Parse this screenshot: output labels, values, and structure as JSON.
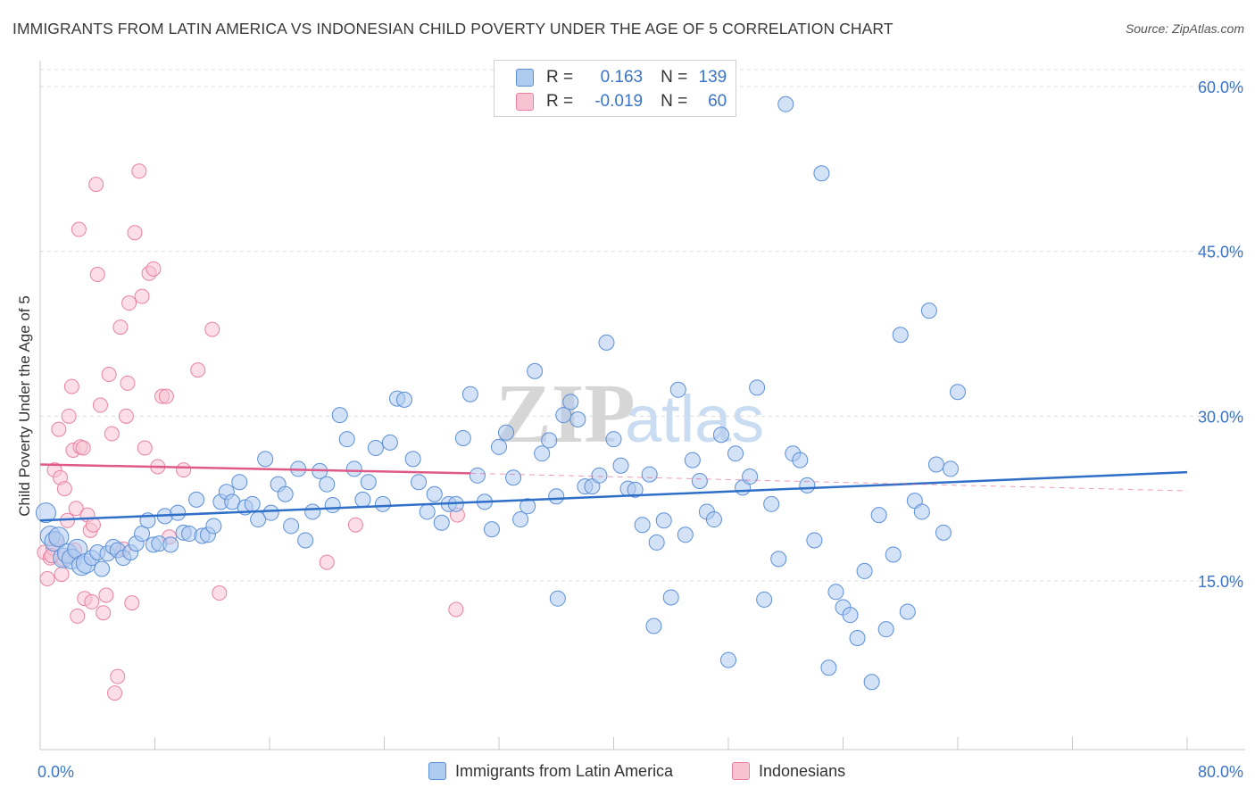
{
  "title": "IMMIGRANTS FROM LATIN AMERICA VS INDONESIAN CHILD POVERTY UNDER THE AGE OF 5 CORRELATION CHART",
  "source": "Source: ZipAtlas.com",
  "watermark": {
    "zip": "ZIP",
    "atlas": "atlas"
  },
  "colors": {
    "blue_fill": "#aecbf0",
    "blue_stroke": "#5b8fd6",
    "blue_line": "#2f6fc8",
    "pink_fill": "#f7c3d3",
    "pink_stroke": "#e8829f",
    "pink_line": "#e05a88",
    "axis_text": "#3a74c9",
    "grid": "#dcdcdc"
  },
  "legend": {
    "rows": [
      {
        "r_label": "R =",
        "r_value": "0.163",
        "n_label": "N =",
        "n_value": "139"
      },
      {
        "r_label": "R =",
        "r_value": "-0.019",
        "n_label": "N =",
        "n_value": "60"
      }
    ]
  },
  "bottom_legend": {
    "blue": "Immigrants from Latin America",
    "pink": "Indonesians"
  },
  "chart_data": {
    "type": "scatter",
    "title": "IMMIGRANTS FROM LATIN AMERICA VS INDONESIAN CHILD POVERTY UNDER THE AGE OF 5 CORRELATION CHART",
    "xlabel": "",
    "ylabel": "Child Poverty Under the Age of 5",
    "xlim": [
      0,
      80
    ],
    "ylim": [
      0,
      63
    ],
    "x_tick_labels": [
      "0.0%",
      "80.0%"
    ],
    "y_ticks": [
      15,
      30,
      45,
      60
    ],
    "y_tick_labels": [
      "15.0%",
      "30.0%",
      "45.0%",
      "60.0%"
    ],
    "grid": true,
    "series": [
      {
        "name": "Immigrants from Latin America",
        "color": "blue",
        "trend": {
          "x": [
            0,
            80
          ],
          "y": [
            20.5,
            24.9
          ]
        },
        "points": [
          [
            0.4,
            21.2
          ],
          [
            0.7,
            19.1
          ],
          [
            1.0,
            18.6
          ],
          [
            1.3,
            19.0
          ],
          [
            1.6,
            17.1
          ],
          [
            1.9,
            17.5
          ],
          [
            2.2,
            17.0
          ],
          [
            2.6,
            17.9
          ],
          [
            2.9,
            16.4
          ],
          [
            3.2,
            16.6
          ],
          [
            3.6,
            17.1
          ],
          [
            4.0,
            17.6
          ],
          [
            4.3,
            16.1
          ],
          [
            4.7,
            17.5
          ],
          [
            5.1,
            18.1
          ],
          [
            5.4,
            17.8
          ],
          [
            5.8,
            17.1
          ],
          [
            6.3,
            17.6
          ],
          [
            6.7,
            18.4
          ],
          [
            7.1,
            19.3
          ],
          [
            7.5,
            20.5
          ],
          [
            7.9,
            18.3
          ],
          [
            8.3,
            18.4
          ],
          [
            8.7,
            20.9
          ],
          [
            9.1,
            18.3
          ],
          [
            9.6,
            21.2
          ],
          [
            10.0,
            19.4
          ],
          [
            10.4,
            19.3
          ],
          [
            10.9,
            22.4
          ],
          [
            11.3,
            19.1
          ],
          [
            11.7,
            19.2
          ],
          [
            12.1,
            20.0
          ],
          [
            12.6,
            22.2
          ],
          [
            13.0,
            23.1
          ],
          [
            13.4,
            22.2
          ],
          [
            13.9,
            24.0
          ],
          [
            14.3,
            21.7
          ],
          [
            14.8,
            22.0
          ],
          [
            15.2,
            20.6
          ],
          [
            15.7,
            26.1
          ],
          [
            16.1,
            21.2
          ],
          [
            16.6,
            23.8
          ],
          [
            17.1,
            22.9
          ],
          [
            17.5,
            20.0
          ],
          [
            18.0,
            25.2
          ],
          [
            18.5,
            18.7
          ],
          [
            19.0,
            21.3
          ],
          [
            19.5,
            25.0
          ],
          [
            20.0,
            23.8
          ],
          [
            20.4,
            21.9
          ],
          [
            20.9,
            30.1
          ],
          [
            21.4,
            27.9
          ],
          [
            21.9,
            25.2
          ],
          [
            22.5,
            22.4
          ],
          [
            22.9,
            24.0
          ],
          [
            23.4,
            27.1
          ],
          [
            23.9,
            22.0
          ],
          [
            24.4,
            27.6
          ],
          [
            24.9,
            31.6
          ],
          [
            25.4,
            31.5
          ],
          [
            26.0,
            26.1
          ],
          [
            26.4,
            24.0
          ],
          [
            27.0,
            21.3
          ],
          [
            27.5,
            22.9
          ],
          [
            28.0,
            20.3
          ],
          [
            28.5,
            22.0
          ],
          [
            29.0,
            22.0
          ],
          [
            29.5,
            28.0
          ],
          [
            30.0,
            32.0
          ],
          [
            30.5,
            24.6
          ],
          [
            31.0,
            22.2
          ],
          [
            31.5,
            19.7
          ],
          [
            32.0,
            27.2
          ],
          [
            32.5,
            28.5
          ],
          [
            33.0,
            24.4
          ],
          [
            33.5,
            20.6
          ],
          [
            34.0,
            21.8
          ],
          [
            34.5,
            34.1
          ],
          [
            35.0,
            26.6
          ],
          [
            35.5,
            27.8
          ],
          [
            36.0,
            22.7
          ],
          [
            36.5,
            30.1
          ],
          [
            37.0,
            31.3
          ],
          [
            37.5,
            29.7
          ],
          [
            38.0,
            23.6
          ],
          [
            38.5,
            23.6
          ],
          [
            39.0,
            24.6
          ],
          [
            39.5,
            36.7
          ],
          [
            40.0,
            27.9
          ],
          [
            40.5,
            25.5
          ],
          [
            41.0,
            23.4
          ],
          [
            41.5,
            23.3
          ],
          [
            42.0,
            20.1
          ],
          [
            42.5,
            24.7
          ],
          [
            43.0,
            18.5
          ],
          [
            43.5,
            20.5
          ],
          [
            44.0,
            13.5
          ],
          [
            44.5,
            32.4
          ],
          [
            45.0,
            19.2
          ],
          [
            45.5,
            26.0
          ],
          [
            46.0,
            24.1
          ],
          [
            46.5,
            21.3
          ],
          [
            47.0,
            20.6
          ],
          [
            47.5,
            28.3
          ],
          [
            48.0,
            7.8
          ],
          [
            48.5,
            26.6
          ],
          [
            49.0,
            23.5
          ],
          [
            49.5,
            24.5
          ],
          [
            50.0,
            32.6
          ],
          [
            50.5,
            13.3
          ],
          [
            51.0,
            22.0
          ],
          [
            51.5,
            17.0
          ],
          [
            52.0,
            58.4
          ],
          [
            52.5,
            26.6
          ],
          [
            53.0,
            26.0
          ],
          [
            53.5,
            23.7
          ],
          [
            54.0,
            18.7
          ],
          [
            54.5,
            52.1
          ],
          [
            55.0,
            7.1
          ],
          [
            55.5,
            14.0
          ],
          [
            56.0,
            12.6
          ],
          [
            56.5,
            11.9
          ],
          [
            57.0,
            9.8
          ],
          [
            57.5,
            15.9
          ],
          [
            58.0,
            5.8
          ],
          [
            58.5,
            21.0
          ],
          [
            59.0,
            10.6
          ],
          [
            59.5,
            17.4
          ],
          [
            60.0,
            37.4
          ],
          [
            60.5,
            12.2
          ],
          [
            61.0,
            22.3
          ],
          [
            61.5,
            21.3
          ],
          [
            62.0,
            39.6
          ],
          [
            62.5,
            25.6
          ],
          [
            63.0,
            19.4
          ],
          [
            63.5,
            25.2
          ],
          [
            64.0,
            32.2
          ],
          [
            42.8,
            10.9
          ],
          [
            36.1,
            13.4
          ]
        ]
      },
      {
        "name": "Indonesians",
        "color": "pink",
        "trend": {
          "x": [
            0,
            30
          ],
          "y": [
            25.6,
            24.8
          ]
        },
        "trend_extension": {
          "x": [
            30,
            80
          ],
          "y": [
            24.8,
            23.2
          ]
        },
        "points": [
          [
            0.3,
            17.6
          ],
          [
            0.5,
            15.2
          ],
          [
            0.7,
            17.1
          ],
          [
            0.9,
            18.0
          ],
          [
            1.0,
            25.1
          ],
          [
            1.1,
            18.8
          ],
          [
            1.3,
            28.8
          ],
          [
            1.4,
            24.4
          ],
          [
            1.5,
            15.6
          ],
          [
            1.7,
            23.4
          ],
          [
            1.9,
            20.5
          ],
          [
            2.0,
            30.0
          ],
          [
            2.2,
            32.7
          ],
          [
            2.3,
            26.9
          ],
          [
            2.5,
            21.6
          ],
          [
            2.6,
            11.8
          ],
          [
            2.7,
            47.0
          ],
          [
            2.8,
            27.2
          ],
          [
            3.0,
            27.1
          ],
          [
            3.1,
            13.4
          ],
          [
            3.3,
            21.0
          ],
          [
            3.5,
            19.6
          ],
          [
            3.7,
            20.1
          ],
          [
            3.9,
            51.1
          ],
          [
            4.0,
            42.9
          ],
          [
            4.2,
            31.0
          ],
          [
            4.4,
            12.1
          ],
          [
            4.6,
            13.7
          ],
          [
            4.8,
            33.8
          ],
          [
            5.0,
            28.4
          ],
          [
            5.2,
            4.8
          ],
          [
            5.4,
            6.3
          ],
          [
            5.6,
            38.1
          ],
          [
            5.8,
            17.9
          ],
          [
            6.0,
            30.0
          ],
          [
            6.2,
            40.3
          ],
          [
            6.4,
            13.0
          ],
          [
            6.6,
            46.7
          ],
          [
            6.9,
            52.3
          ],
          [
            7.1,
            40.9
          ],
          [
            7.3,
            27.1
          ],
          [
            7.6,
            43.0
          ],
          [
            7.9,
            43.4
          ],
          [
            8.2,
            25.4
          ],
          [
            8.5,
            31.8
          ],
          [
            8.8,
            31.8
          ],
          [
            9.0,
            19.0
          ],
          [
            10.0,
            25.1
          ],
          [
            11.0,
            34.2
          ],
          [
            12.0,
            37.9
          ],
          [
            12.5,
            13.9
          ],
          [
            20.0,
            16.7
          ],
          [
            22.0,
            20.1
          ],
          [
            29.0,
            12.4
          ],
          [
            29.1,
            21.0
          ],
          [
            1.6,
            17.0
          ],
          [
            2.4,
            17.8
          ],
          [
            0.8,
            17.3
          ],
          [
            6.1,
            33.0
          ],
          [
            3.6,
            13.1
          ]
        ]
      }
    ]
  }
}
